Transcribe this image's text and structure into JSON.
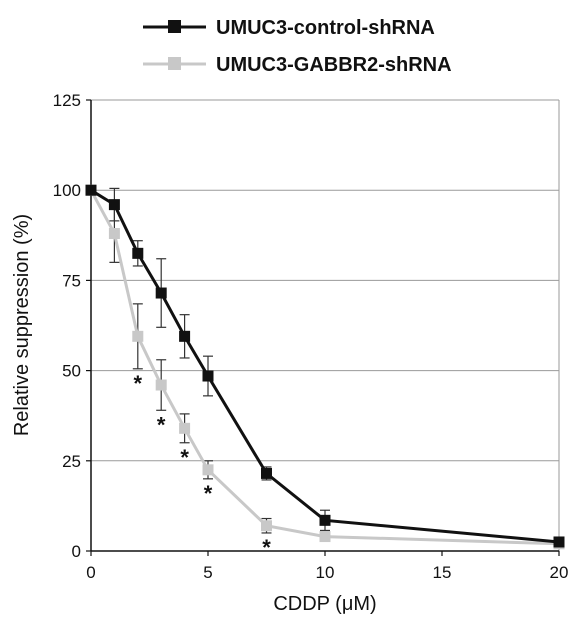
{
  "chart_data": {
    "type": "line",
    "xlabel": "CDDP (μM)",
    "ylabel": "Relative suppression (%)",
    "xlim": [
      0,
      20
    ],
    "ylim": [
      0,
      125
    ],
    "x_ticks": [
      0,
      5,
      10,
      15,
      20
    ],
    "y_ticks": [
      0,
      25,
      50,
      75,
      100,
      125
    ],
    "grid": "horizontal",
    "legend_position": "top",
    "series": [
      {
        "name": "UMUC3-control-shRNA",
        "color": "#111111",
        "marker": "square",
        "x": [
          0,
          1,
          2,
          3,
          4,
          5,
          7.5,
          10,
          20
        ],
        "y": [
          100,
          96,
          82.5,
          71.5,
          59.5,
          48.5,
          21.5,
          8.5,
          2.5
        ],
        "err": [
          0,
          4.5,
          3.5,
          9.5,
          6,
          5.5,
          1.8,
          2.8,
          1.0
        ]
      },
      {
        "name": "UMUC3-GABBR2-shRNA",
        "color": "#c8c8c8",
        "marker": "square",
        "x": [
          0,
          1,
          2,
          3,
          4,
          5,
          7.5,
          10,
          20
        ],
        "y": [
          100,
          88,
          59.5,
          46,
          34,
          22.5,
          7,
          4,
          2
        ],
        "err": [
          0,
          8,
          9,
          7,
          4,
          2.5,
          2,
          0.8,
          0.5
        ]
      }
    ],
    "annotations": [
      {
        "text": "*",
        "x": 2
      },
      {
        "text": "*",
        "x": 3
      },
      {
        "text": "*",
        "x": 4
      },
      {
        "text": "*",
        "x": 5
      },
      {
        "text": "*",
        "x": 7.5
      }
    ]
  }
}
